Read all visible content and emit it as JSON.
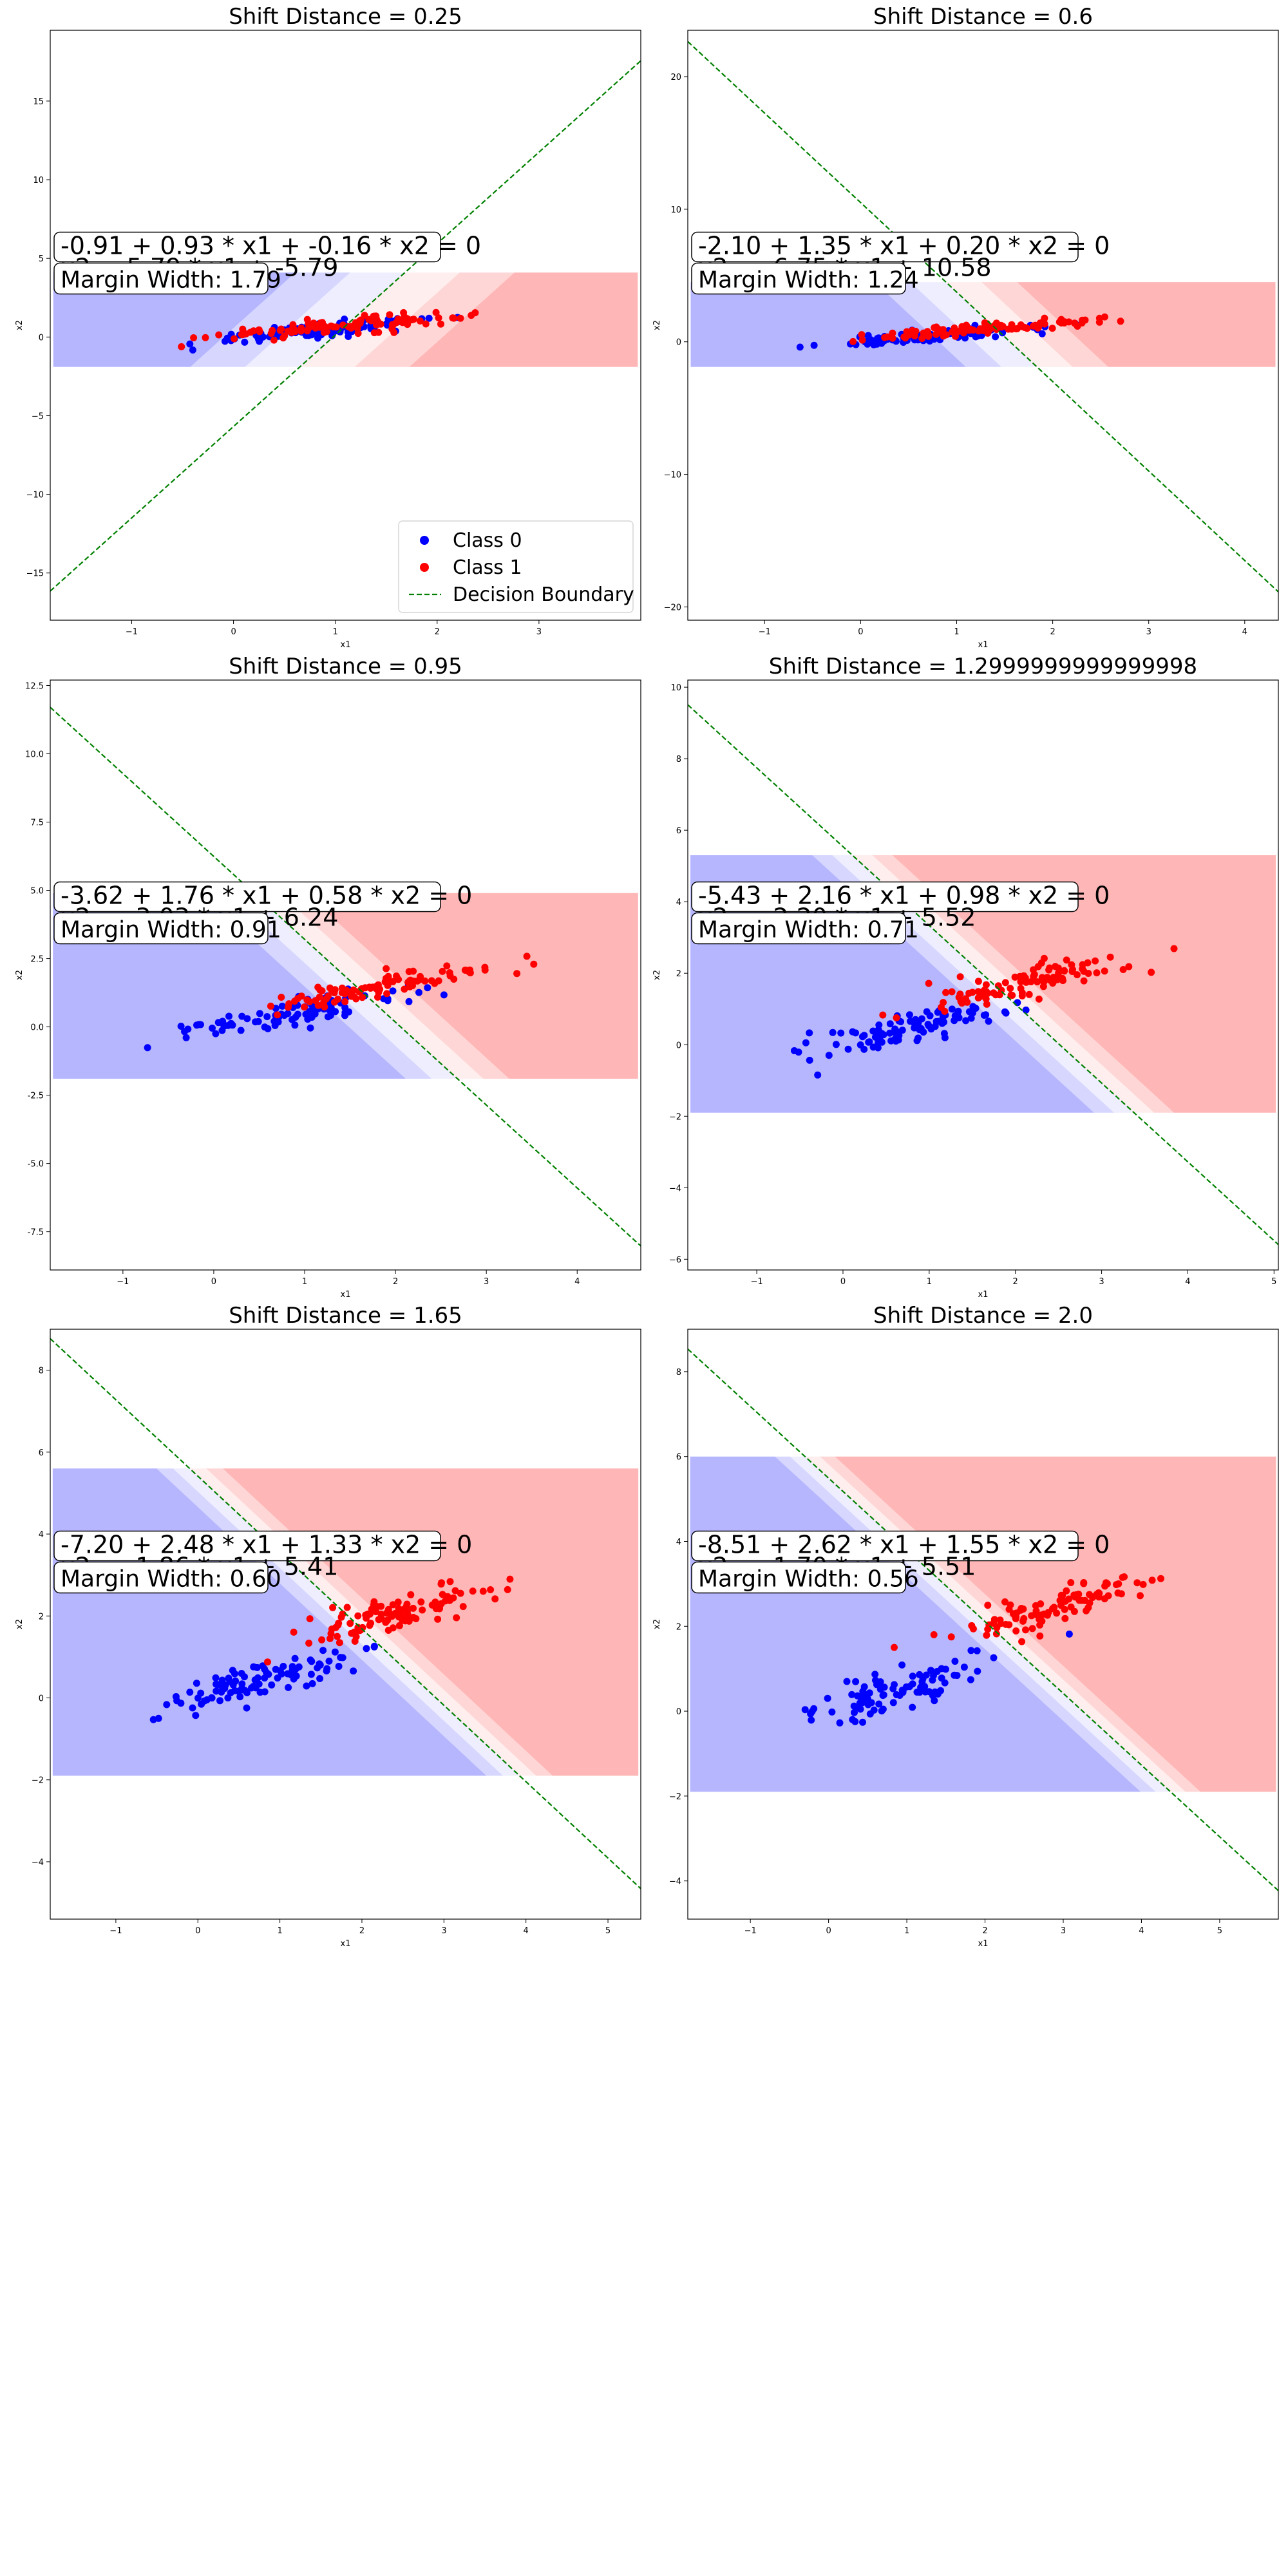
{
  "figure": {
    "background": "#ffffff"
  },
  "colors": {
    "class0": "#0000ff",
    "class1": "#ff0000",
    "boundary": "#008000",
    "axes": "#000000"
  },
  "chart_data": [
    {
      "type": "scatter",
      "title": "Shift Distance = 0.25",
      "xlabel": "x1",
      "ylabel": "x2",
      "xlim": [
        -1.8,
        4.0
      ],
      "ylim": [
        -18.0,
        19.5
      ],
      "xticks": [
        -1,
        0,
        1,
        2,
        3
      ],
      "yticks": [
        -15,
        -10,
        -5,
        0,
        5,
        10,
        15
      ],
      "equation": "-0.91 + 0.93 * x1 + -0.16 * x2 = 0",
      "equation_line2": "x2 = 5.79 * x1 + -5.79",
      "margin_label": "Margin Width: 1.79",
      "boundary": {
        "w0": -0.91,
        "w1": 0.93,
        "w2": -0.16
      },
      "shift": 0.25,
      "shading_ylim": [
        -1.9,
        4.1
      ],
      "legend": {
        "placement": "lower-right",
        "entries": [
          "Class 0",
          "Class 1",
          "Decision Boundary"
        ]
      },
      "series": [
        {
          "name": "Class 0",
          "class": 0
        },
        {
          "name": "Class 1",
          "class": 1
        }
      ]
    },
    {
      "type": "scatter",
      "title": "Shift Distance = 0.6",
      "xlabel": "x1",
      "ylabel": "x2",
      "xlim": [
        -1.8,
        4.35
      ],
      "ylim": [
        -21.0,
        23.5
      ],
      "xticks": [
        -1,
        0,
        1,
        2,
        3,
        4
      ],
      "yticks": [
        -20,
        -10,
        0,
        10,
        20
      ],
      "equation": "-2.10 + 1.35 * x1 + 0.20 * x2 = 0",
      "equation_line2": "x2 = -6.75 * x1 + 10.58",
      "margin_label": "Margin Width: 1.24",
      "boundary": {
        "w0": -2.1,
        "w1": 1.35,
        "w2": 0.2
      },
      "shift": 0.6,
      "shading_ylim": [
        -1.9,
        4.5
      ],
      "series": [
        {
          "name": "Class 0",
          "class": 0
        },
        {
          "name": "Class 1",
          "class": 1
        }
      ]
    },
    {
      "type": "scatter",
      "title": "Shift Distance = 0.95",
      "xlabel": "x1",
      "ylabel": "x2",
      "xlim": [
        -1.8,
        4.7
      ],
      "ylim": [
        -8.9,
        12.7
      ],
      "xticks": [
        -1,
        0,
        1,
        2,
        3,
        4
      ],
      "yticks": [
        -7.5,
        -5.0,
        -2.5,
        0.0,
        2.5,
        5.0,
        7.5,
        10.0,
        12.5
      ],
      "equation": "-3.62 + 1.76 * x1 + 0.58 * x2 = 0",
      "equation_line2": "x2 = -3.03 * x1 + 6.24",
      "margin_label": "Margin Width: 0.91",
      "boundary": {
        "w0": -3.62,
        "w1": 1.76,
        "w2": 0.58
      },
      "shift": 0.95,
      "shading_ylim": [
        -1.9,
        4.9
      ],
      "series": [
        {
          "name": "Class 0",
          "class": 0
        },
        {
          "name": "Class 1",
          "class": 1
        }
      ]
    },
    {
      "type": "scatter",
      "title": "Shift Distance = 1.2999999999999998",
      "xlabel": "x1",
      "ylabel": "x2",
      "xlim": [
        -1.8,
        5.05
      ],
      "ylim": [
        -6.3,
        10.2
      ],
      "xticks": [
        -1,
        0,
        1,
        2,
        3,
        4,
        5
      ],
      "yticks": [
        -6,
        -4,
        -2,
        0,
        2,
        4,
        6,
        8,
        10
      ],
      "equation": "-5.43 + 2.16 * x1 + 0.98 * x2 = 0",
      "equation_line2": "x2 = -2.20 * x1 + 5.52",
      "margin_label": "Margin Width: 0.71",
      "boundary": {
        "w0": -5.43,
        "w1": 2.16,
        "w2": 0.98
      },
      "shift": 1.3,
      "shading_ylim": [
        -1.9,
        5.3
      ],
      "series": [
        {
          "name": "Class 0",
          "class": 0
        },
        {
          "name": "Class 1",
          "class": 1
        }
      ]
    },
    {
      "type": "scatter",
      "title": "Shift Distance = 1.65",
      "xlabel": "x1",
      "ylabel": "x2",
      "xlim": [
        -1.8,
        5.4
      ],
      "ylim": [
        -5.4,
        9.0
      ],
      "xticks": [
        -1,
        0,
        1,
        2,
        3,
        4,
        5
      ],
      "yticks": [
        -4,
        -2,
        0,
        2,
        4,
        6,
        8
      ],
      "equation": "-7.20 + 2.48 * x1 + 1.33 * x2 = 0",
      "equation_line2": "x2 = -1.86 * x1 + 5.41",
      "margin_label": "Margin Width: 0.60",
      "boundary": {
        "w0": -7.2,
        "w1": 2.48,
        "w2": 1.33
      },
      "shift": 1.65,
      "shading_ylim": [
        -1.9,
        5.6
      ],
      "series": [
        {
          "name": "Class 0",
          "class": 0
        },
        {
          "name": "Class 1",
          "class": 1
        }
      ]
    },
    {
      "type": "scatter",
      "title": "Shift Distance = 2.0",
      "xlabel": "x1",
      "ylabel": "x2",
      "xlim": [
        -1.8,
        5.75
      ],
      "ylim": [
        -4.9,
        9.0
      ],
      "xticks": [
        -1,
        0,
        1,
        2,
        3,
        4,
        5
      ],
      "yticks": [
        -4,
        -2,
        0,
        2,
        4,
        6,
        8
      ],
      "equation": "-8.51 + 2.62 * x1 + 1.55 * x2 = 0",
      "equation_line2": "x2 = -1.70 * x1 + 5.51",
      "margin_label": "Margin Width: 0.56",
      "boundary": {
        "w0": -8.51,
        "w1": 2.62,
        "w2": 1.55
      },
      "shift": 2.0,
      "shading_ylim": [
        -1.9,
        6.0
      ],
      "series": [
        {
          "name": "Class 0",
          "class": 0
        },
        {
          "name": "Class 1",
          "class": 1
        }
      ]
    }
  ]
}
